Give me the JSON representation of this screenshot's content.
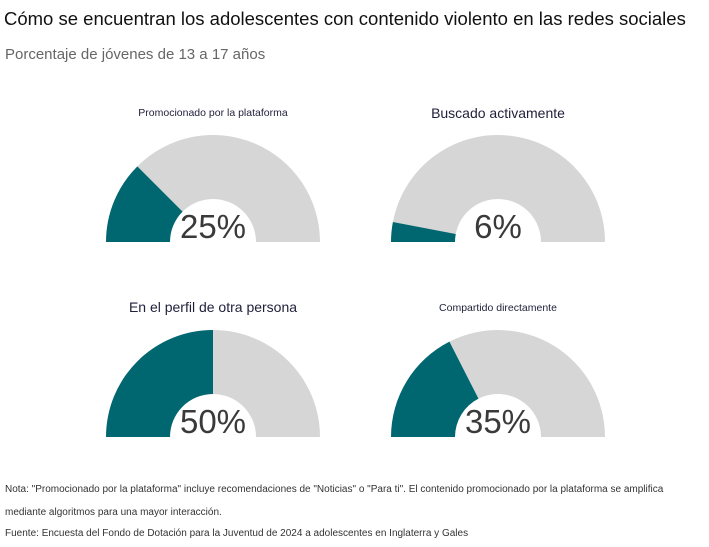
{
  "title": "Cómo se encuentran los adolescentes con contenido violento en las redes sociales",
  "subtitle": "Porcentaje de jóvenes de 13 a 17 años",
  "note": "Nota: \"Promocionado por la plataforma\" incluye recomendaciones de \"Noticias\" o \"Para ti\". El contenido promocionado por la plataforma se amplifica mediante algoritmos para una mayor interacción.",
  "source": "Fuente: Encuesta del Fondo de Dotación para la Juventud de 2024 a adolescentes en Inglaterra y Gales",
  "colors": {
    "filled": "#006770",
    "remaining": "#d6d6d6"
  },
  "chart_data": [
    {
      "type": "gauge",
      "title": "Promocionado por la plataforma",
      "value": 25,
      "value_label": "25%",
      "range": [
        0,
        100
      ]
    },
    {
      "type": "gauge",
      "title": "Buscado activamente",
      "value": 6,
      "value_label": "6%",
      "range": [
        0,
        100
      ]
    },
    {
      "type": "gauge",
      "title": "En el perfil de otra persona",
      "value": 50,
      "value_label": "50%",
      "range": [
        0,
        100
      ]
    },
    {
      "type": "gauge",
      "title": "Compartido directamente",
      "value": 35,
      "value_label": "35%",
      "range": [
        0,
        100
      ]
    }
  ]
}
